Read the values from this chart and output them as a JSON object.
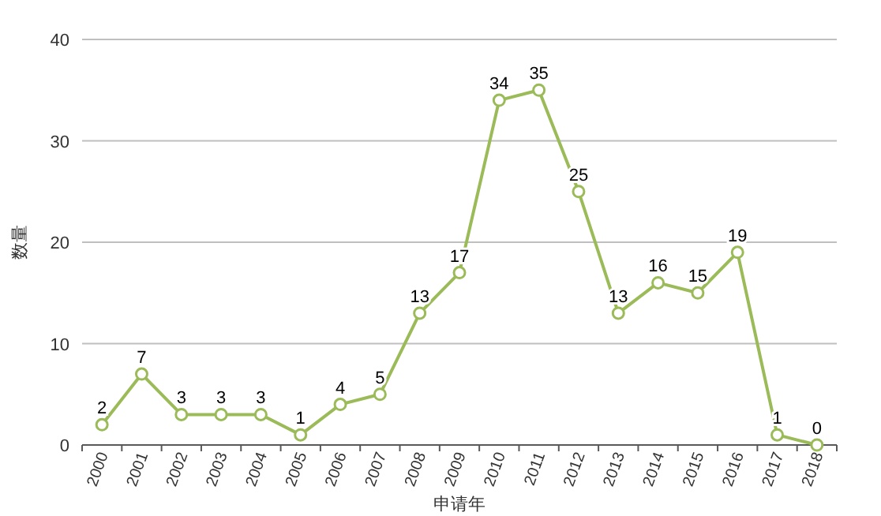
{
  "chart_data": {
    "type": "line",
    "xlabel": "申请年",
    "ylabel": "数量",
    "categories": [
      "2000",
      "2001",
      "2002",
      "2003",
      "2004",
      "2005",
      "2006",
      "2007",
      "2008",
      "2009",
      "2010",
      "2011",
      "2012",
      "2013",
      "2014",
      "2015",
      "2016",
      "2017",
      "2018"
    ],
    "values": [
      2,
      7,
      3,
      3,
      3,
      1,
      4,
      5,
      13,
      17,
      34,
      35,
      25,
      13,
      16,
      15,
      19,
      1,
      0
    ],
    "color": "#9bbb59",
    "ylim": [
      0,
      40
    ],
    "yticks": [
      0,
      10,
      20,
      30,
      40
    ],
    "grid": "y",
    "data_labels": true,
    "marker": "circle"
  }
}
